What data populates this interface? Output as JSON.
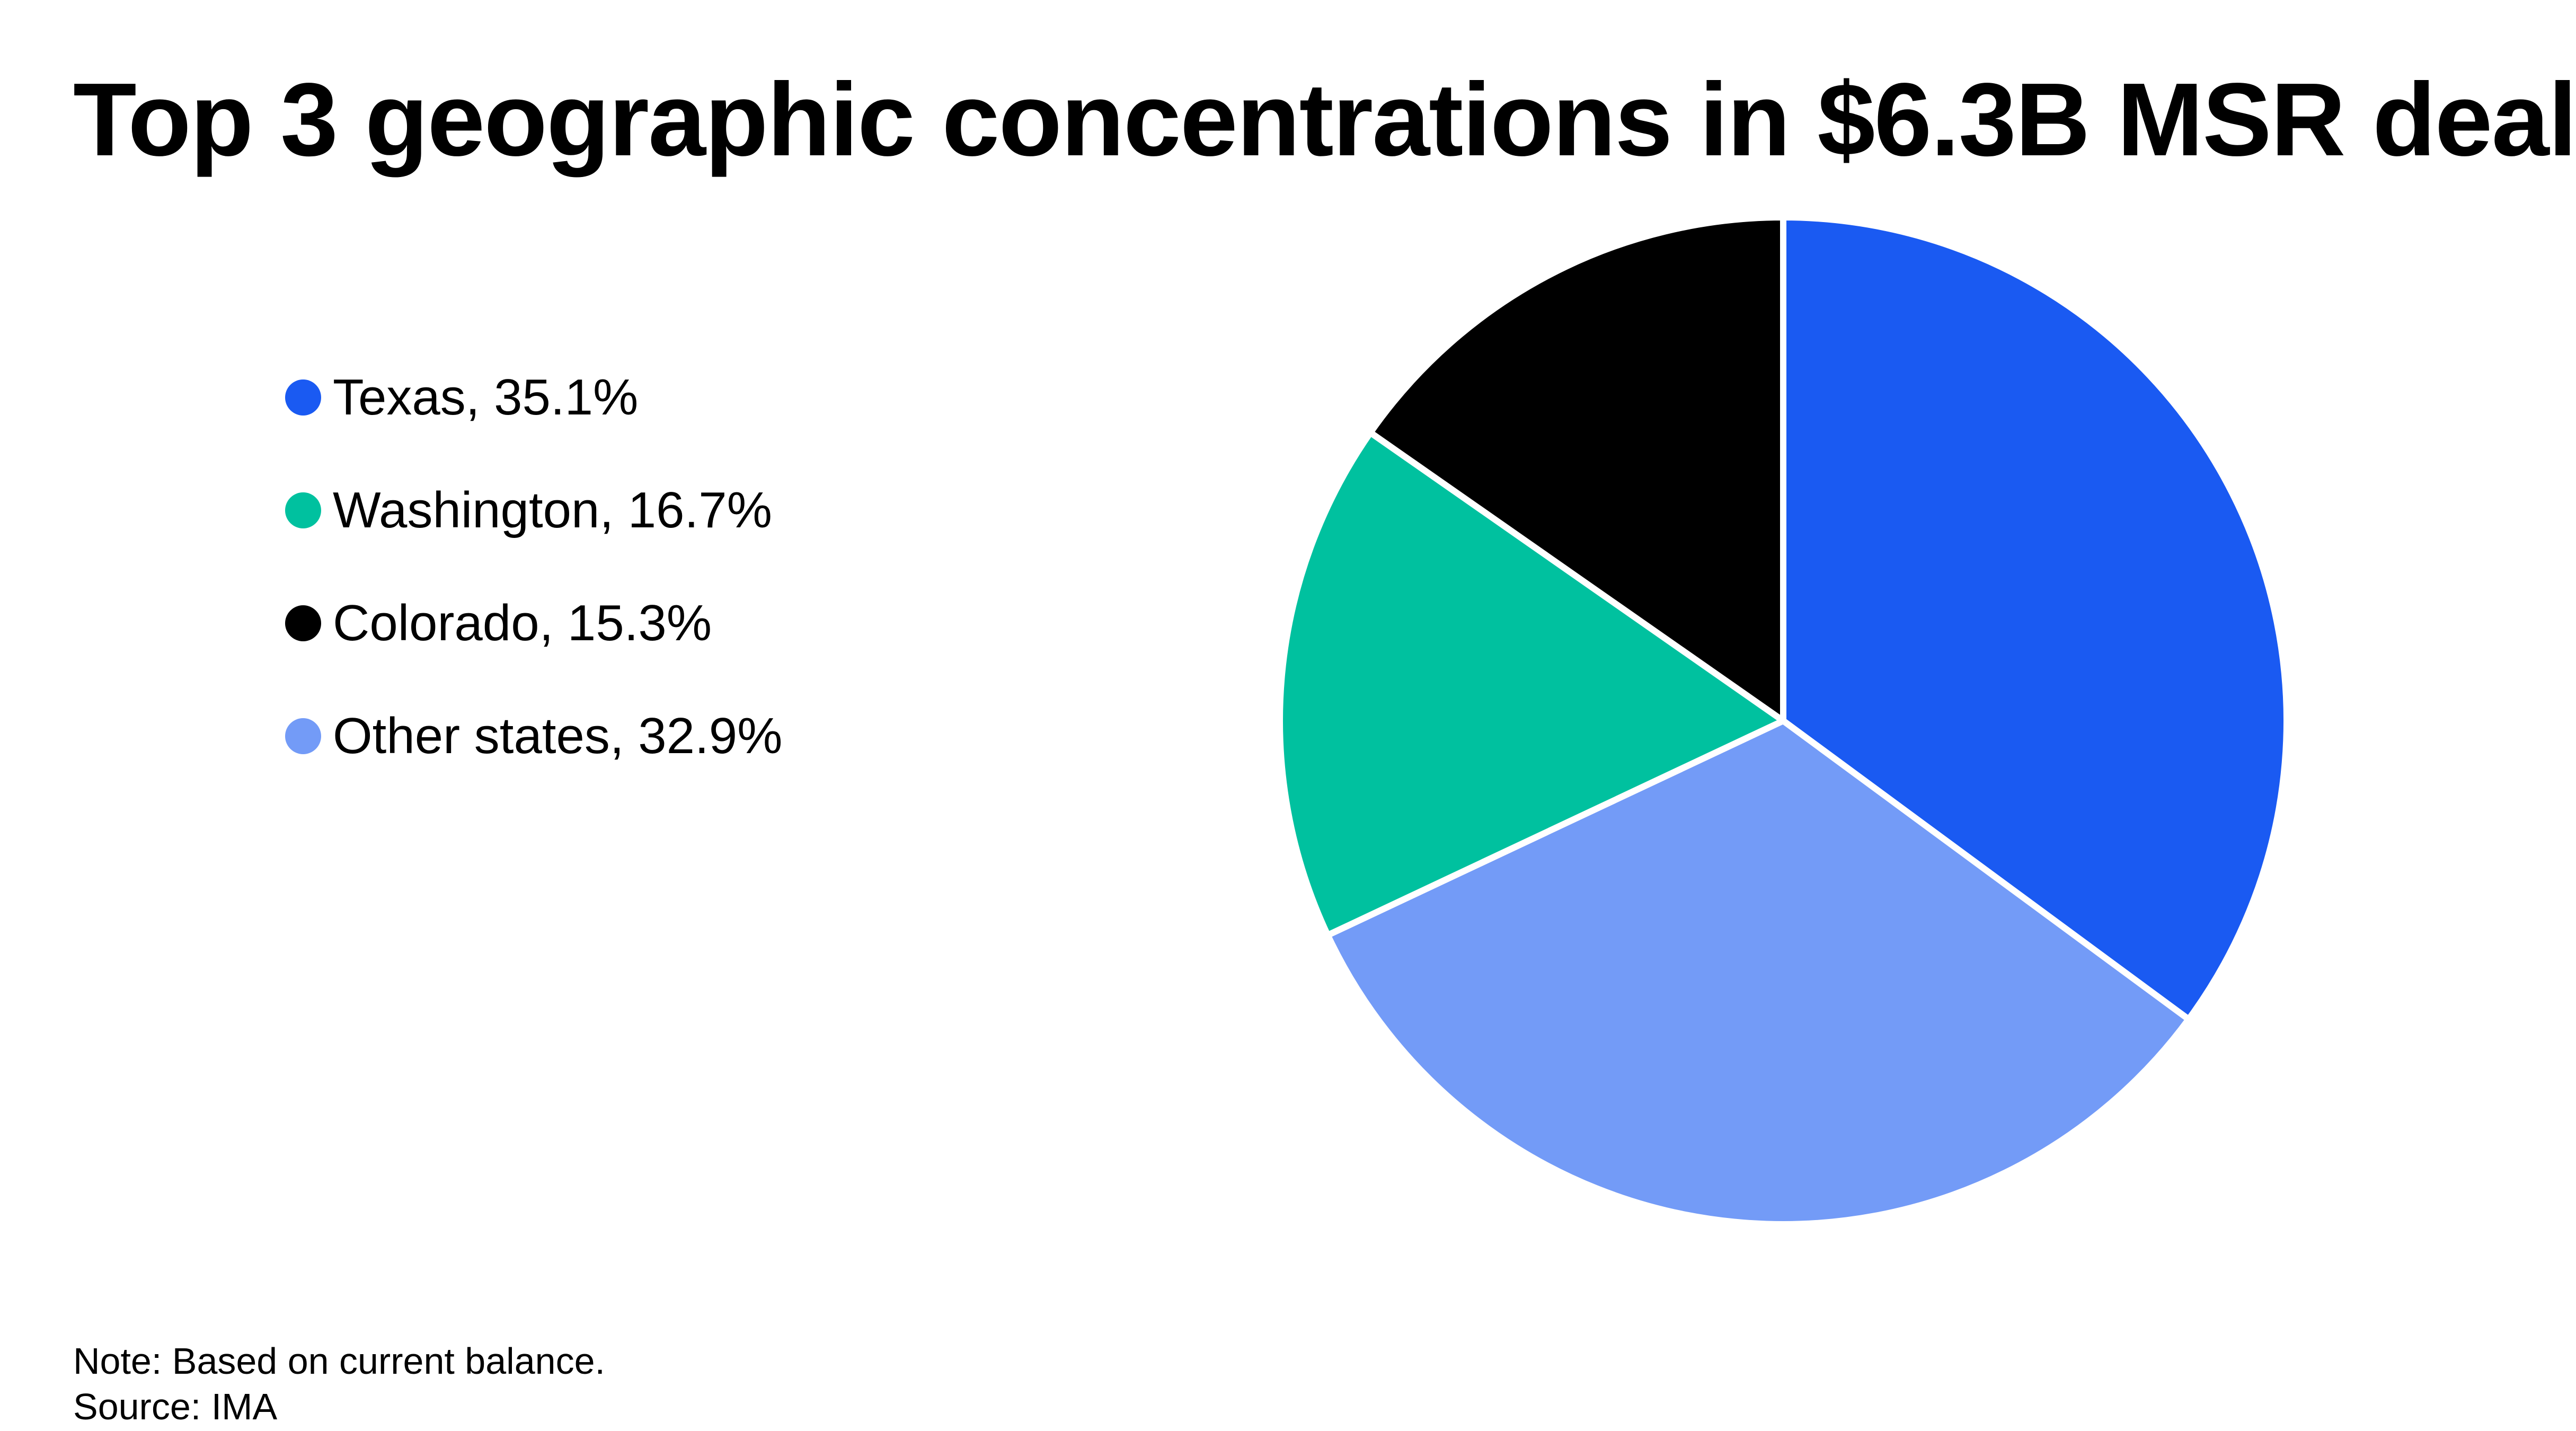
{
  "title": "Top 3 geographic concentrations in $6.3B MSR deal",
  "legend": [
    {
      "label": "Texas, 35.1%",
      "color": "#1a5af2"
    },
    {
      "label": "Washington, 16.7%",
      "color": "#00c19f"
    },
    {
      "label": "Colorado, 15.3%",
      "color": "#000000"
    },
    {
      "label": "Other states, 32.9%",
      "color": "#739bf7"
    }
  ],
  "chart_data": {
    "type": "pie",
    "title": "Top 3 geographic concentrations in $6.3B MSR deal",
    "categories": [
      "Texas",
      "Washington",
      "Colorado",
      "Other states"
    ],
    "values": [
      35.1,
      16.7,
      15.3,
      32.9
    ],
    "unit": "%",
    "colors": [
      "#1a5af2",
      "#00c19f",
      "#000000",
      "#739bf7"
    ],
    "slice_order_clockwise_from_top": [
      "Texas",
      "Other states",
      "Washington",
      "Colorado"
    ],
    "legend_placement": "left"
  },
  "footer": {
    "note": "Note: Based on current balance.",
    "source": "Source: IMA"
  }
}
